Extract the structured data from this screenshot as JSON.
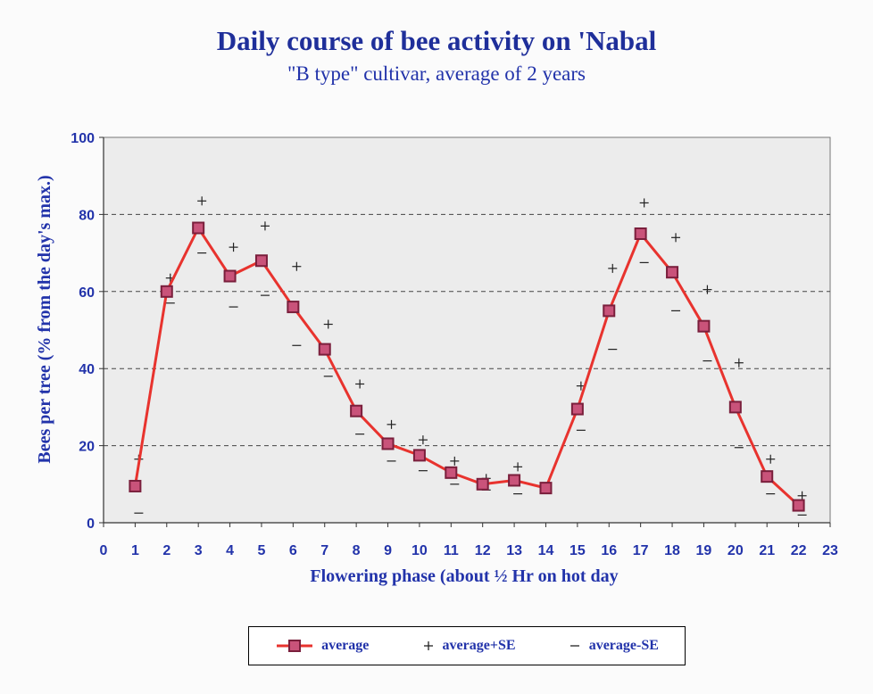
{
  "colors": {
    "title": "#1f2f9a",
    "text": "#2233aa",
    "line": "#e8332e",
    "marker_fill": "#c9537a",
    "marker_stroke": "#7a1f3c",
    "plot_bg": "#ececec",
    "grid": "#444444"
  },
  "chart_data": {
    "type": "line",
    "title": "Daily course of bee activity on 'Nabal",
    "subtitle": "\"B type\" cultivar, average of 2 years",
    "xlabel": "Flowering phase (about ½ Hr on hot day",
    "ylabel": "Bees per tree (% from the day's max.)",
    "xlim": [
      0,
      23
    ],
    "ylim": [
      0,
      100
    ],
    "xticks": [
      "0",
      "1",
      "2",
      "3",
      "4",
      "5",
      "6",
      "7",
      "8",
      "9",
      "10",
      "11",
      "12",
      "13",
      "14",
      "15",
      "16",
      "17",
      "18",
      "19",
      "20",
      "21",
      "22",
      "23"
    ],
    "yticks": [
      "0",
      "20",
      "40",
      "60",
      "80",
      "100"
    ],
    "grid": "horizontal dashed",
    "legend_position": "bottom",
    "x": [
      1,
      2,
      3,
      4,
      5,
      6,
      7,
      8,
      9,
      10,
      11,
      12,
      13,
      14,
      15,
      16,
      17,
      18,
      19,
      20,
      21,
      22
    ],
    "series": [
      {
        "name": "average",
        "values": [
          9.5,
          60,
          76.5,
          64,
          68,
          56,
          45,
          29,
          20.5,
          17.5,
          13,
          10,
          11,
          9,
          29.5,
          55,
          75,
          65,
          51,
          30,
          12,
          4.5
        ]
      },
      {
        "name": "average+SE",
        "values": [
          16.5,
          63.5,
          83.5,
          71.5,
          77,
          66.5,
          51.5,
          36,
          25.5,
          21.5,
          16,
          11.5,
          14.5,
          null,
          35.5,
          66,
          83,
          74,
          60.5,
          41.5,
          16.5,
          7
        ]
      },
      {
        "name": "average-SE",
        "values": [
          2.5,
          57,
          70,
          56,
          59,
          46,
          38,
          23,
          16,
          13.5,
          10,
          8.5,
          7.5,
          null,
          24,
          45,
          67.5,
          55,
          42,
          19.5,
          7.5,
          2
        ]
      }
    ]
  }
}
